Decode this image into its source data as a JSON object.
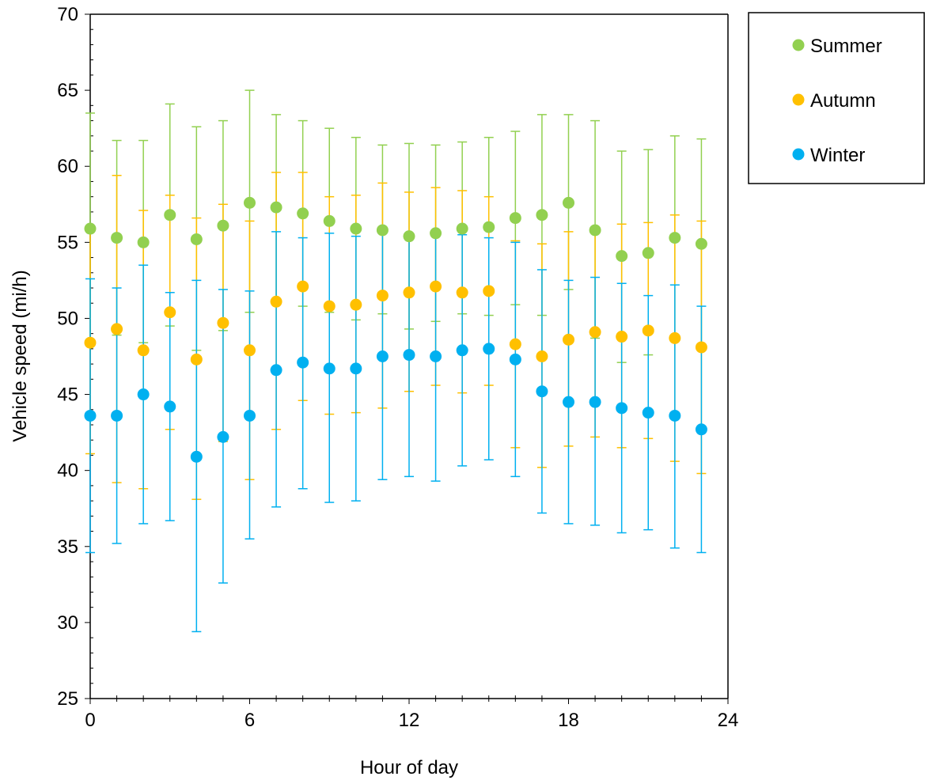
{
  "chart_data": {
    "type": "scatter",
    "xlabel": "Hour of day",
    "ylabel": "Vehicle speed (mi/h)",
    "xlim": [
      0,
      24
    ],
    "ylim": [
      25,
      70
    ],
    "x_ticks": [
      0,
      6,
      12,
      18,
      24
    ],
    "y_ticks": [
      25,
      30,
      35,
      40,
      45,
      50,
      55,
      60,
      65,
      70
    ],
    "grid": false,
    "legend_position": "top-right",
    "x": [
      0,
      1,
      2,
      3,
      4,
      5,
      6,
      7,
      8,
      9,
      10,
      11,
      12,
      13,
      14,
      15,
      16,
      17,
      18,
      19,
      20,
      21,
      22,
      23
    ],
    "series": [
      {
        "name": "Summer",
        "color": "#92d050",
        "values": [
          55.9,
          55.3,
          55.0,
          56.8,
          55.2,
          56.1,
          57.6,
          57.3,
          56.9,
          56.4,
          55.9,
          55.8,
          55.4,
          55.6,
          55.9,
          56.0,
          56.6,
          56.8,
          57.6,
          55.8,
          54.1,
          54.3,
          55.3,
          54.9
        ],
        "upper": [
          63.5,
          61.7,
          61.7,
          64.1,
          62.6,
          63.0,
          65.0,
          63.4,
          63.0,
          62.5,
          61.9,
          61.4,
          61.5,
          61.4,
          61.6,
          61.9,
          62.3,
          63.4,
          63.4,
          63.0,
          61.0,
          61.1,
          62.0,
          61.8
        ],
        "lower": [
          48.5,
          48.9,
          48.4,
          49.5,
          47.9,
          49.2,
          50.4,
          51.2,
          50.8,
          50.4,
          49.9,
          50.3,
          49.3,
          49.8,
          50.3,
          50.2,
          50.9,
          50.2,
          51.9,
          48.7,
          47.1,
          47.6,
          48.6,
          48.0
        ]
      },
      {
        "name": "Autumn",
        "color": "#ffc000",
        "values": [
          48.4,
          49.3,
          47.9,
          50.4,
          47.3,
          49.7,
          47.9,
          51.1,
          52.1,
          50.8,
          50.9,
          51.5,
          51.7,
          52.1,
          51.7,
          51.8,
          48.3,
          47.5,
          48.6,
          49.1,
          48.8,
          49.2,
          48.7,
          48.1
        ],
        "upper": [
          55.7,
          59.4,
          57.1,
          58.1,
          56.6,
          57.5,
          56.4,
          59.6,
          59.6,
          58.0,
          58.1,
          58.9,
          58.3,
          58.6,
          58.4,
          58.0,
          55.1,
          54.9,
          55.7,
          55.9,
          56.2,
          56.3,
          56.8,
          56.4
        ],
        "lower": [
          41.1,
          39.2,
          38.8,
          42.7,
          38.1,
          41.9,
          39.4,
          42.7,
          44.6,
          43.7,
          43.8,
          44.1,
          45.2,
          45.6,
          45.1,
          45.6,
          41.5,
          40.2,
          41.6,
          42.2,
          41.5,
          42.1,
          40.6,
          39.8
        ]
      },
      {
        "name": "Winter",
        "color": "#00b0f0",
        "values": [
          43.6,
          43.6,
          45.0,
          44.2,
          40.9,
          42.2,
          43.6,
          46.6,
          47.1,
          46.7,
          46.7,
          47.5,
          47.6,
          47.5,
          47.9,
          48.0,
          47.3,
          45.2,
          44.5,
          44.5,
          44.1,
          43.8,
          43.6,
          42.7
        ],
        "upper": [
          52.6,
          52.0,
          53.5,
          51.7,
          52.5,
          51.9,
          51.8,
          55.7,
          55.3,
          55.6,
          55.4,
          55.6,
          55.6,
          55.6,
          55.5,
          55.3,
          55.0,
          53.2,
          52.5,
          52.7,
          52.3,
          51.5,
          52.2,
          50.8
        ],
        "lower": [
          34.6,
          35.2,
          36.5,
          36.7,
          29.4,
          32.6,
          35.5,
          37.6,
          38.8,
          37.9,
          38.0,
          39.4,
          39.6,
          39.3,
          40.3,
          40.7,
          39.6,
          37.2,
          36.5,
          36.4,
          35.9,
          36.1,
          34.9,
          34.6
        ]
      }
    ]
  }
}
